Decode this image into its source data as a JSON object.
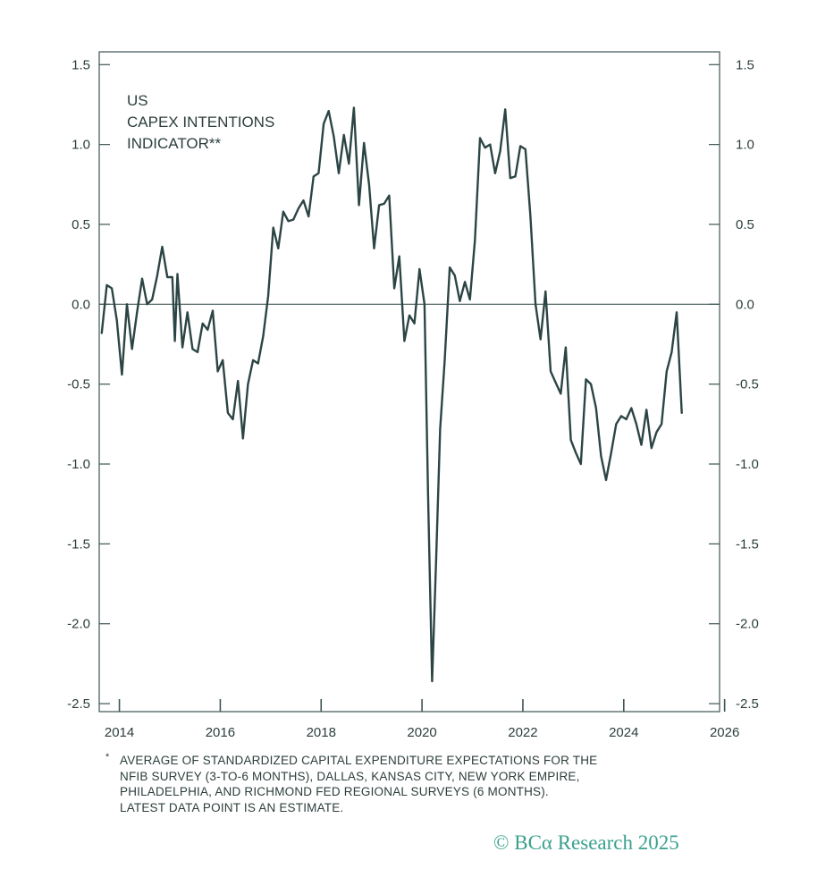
{
  "chart_data": {
    "type": "line",
    "title": [
      "US",
      "CAPEX INTENTIONS",
      "INDICATOR**"
    ],
    "xlabel": "",
    "ylabel": "",
    "xlim": [
      2013.6,
      2025.9
    ],
    "ylim": [
      -2.55,
      1.58
    ],
    "x_ticks": [
      2014,
      2016,
      2018,
      2020,
      2022,
      2024,
      2026
    ],
    "x_tick_labels": [
      "2014",
      "2016",
      "2018",
      "2020",
      "2022",
      "2024",
      "2026"
    ],
    "y_ticks": [
      1.5,
      1.0,
      0.5,
      0.0,
      -0.5,
      -1.0,
      -1.5,
      -2.0,
      -2.5
    ],
    "y_tick_labels": [
      "1.5",
      "1.0",
      "0.5",
      "0.0",
      "-0.5",
      "-1.0",
      "-1.5",
      "-2.0",
      "-2.5"
    ],
    "y_right_axis": true,
    "zero_line": true,
    "grid": false,
    "line_color": "#2c4544",
    "series": [
      {
        "x": [
          2013.65,
          2013.75,
          2013.85,
          2013.95,
          2014.05,
          2014.15,
          2014.25,
          2014.35,
          2014.45,
          2014.55,
          2014.65,
          2014.75,
          2014.85,
          2014.95,
          2015.05,
          2015.1,
          2015.15,
          2015.25,
          2015.35,
          2015.45,
          2015.55,
          2015.65,
          2015.75,
          2015.85,
          2015.95,
          2016.05,
          2016.15,
          2016.25,
          2016.35,
          2016.45,
          2016.55,
          2016.65,
          2016.75,
          2016.85,
          2016.95,
          2017.05,
          2017.15,
          2017.25,
          2017.35,
          2017.45,
          2017.55,
          2017.65,
          2017.75,
          2017.85,
          2017.95,
          2018.05,
          2018.15,
          2018.25,
          2018.35,
          2018.45,
          2018.55,
          2018.65,
          2018.75,
          2018.85,
          2018.95,
          2019.05,
          2019.15,
          2019.25,
          2019.35,
          2019.45,
          2019.55,
          2019.65,
          2019.75,
          2019.85,
          2019.95,
          2020.05,
          2020.12,
          2020.2,
          2020.28,
          2020.36,
          2020.45,
          2020.55,
          2020.65,
          2020.75,
          2020.85,
          2020.95,
          2021.05,
          2021.15,
          2021.25,
          2021.35,
          2021.45,
          2021.55,
          2021.65,
          2021.75,
          2021.85,
          2021.95,
          2022.05,
          2022.15,
          2022.25,
          2022.35,
          2022.45,
          2022.55,
          2022.65,
          2022.75,
          2022.85,
          2022.95,
          2023.05,
          2023.15,
          2023.25,
          2023.35,
          2023.45,
          2023.55,
          2023.65,
          2023.75,
          2023.85,
          2023.95,
          2024.05,
          2024.15,
          2024.25,
          2024.35,
          2024.45,
          2024.55,
          2024.65,
          2024.75,
          2024.85,
          2024.95,
          2025.05,
          2025.15
        ],
        "y": [
          -0.18,
          0.12,
          0.1,
          -0.1,
          -0.44,
          0.0,
          -0.28,
          -0.05,
          0.16,
          0.0,
          0.03,
          0.18,
          0.36,
          0.17,
          0.17,
          -0.23,
          0.19,
          -0.27,
          -0.05,
          -0.28,
          -0.3,
          -0.12,
          -0.16,
          -0.04,
          -0.42,
          -0.35,
          -0.68,
          -0.72,
          -0.48,
          -0.84,
          -0.5,
          -0.35,
          -0.37,
          -0.2,
          0.05,
          0.48,
          0.35,
          0.58,
          0.52,
          0.53,
          0.6,
          0.65,
          0.55,
          0.8,
          0.82,
          1.13,
          1.21,
          1.05,
          0.82,
          1.06,
          0.88,
          1.23,
          0.62,
          1.01,
          0.75,
          0.35,
          0.62,
          0.63,
          0.68,
          0.1,
          0.3,
          -0.23,
          -0.07,
          -0.12,
          0.22,
          0.0,
          -1.2,
          -2.36,
          -1.6,
          -0.78,
          -0.35,
          0.23,
          0.18,
          0.02,
          0.14,
          0.03,
          0.4,
          1.04,
          0.98,
          1.0,
          0.82,
          0.96,
          1.22,
          0.79,
          0.8,
          0.99,
          0.97,
          0.55,
          0.0,
          -0.22,
          0.08,
          -0.42,
          -0.49,
          -0.56,
          -0.27,
          -0.85,
          -0.93,
          -1.0,
          -0.47,
          -0.5,
          -0.65,
          -0.95,
          -1.1,
          -0.93,
          -0.75,
          -0.7,
          -0.72,
          -0.65,
          -0.75,
          -0.88,
          -0.66,
          -0.9,
          -0.8,
          -0.75,
          -0.42,
          -0.3,
          -0.05,
          -0.68
        ]
      }
    ]
  },
  "footnote": {
    "marker": "*",
    "lines": [
      "AVERAGE OF STANDARDIZED CAPITAL EXPENDITURE EXPECTATIONS FOR THE",
      "NFIB SURVEY (3-TO-6 MONTHS), DALLAS, KANSAS CITY, NEW YORK EMPIRE,",
      "PHILADELPHIA, AND RICHMOND FED REGIONAL SURVEYS (6 MONTHS).",
      "LATEST DATA POINT IS AN ESTIMATE."
    ]
  },
  "copyright": "© BCα Research 2025"
}
